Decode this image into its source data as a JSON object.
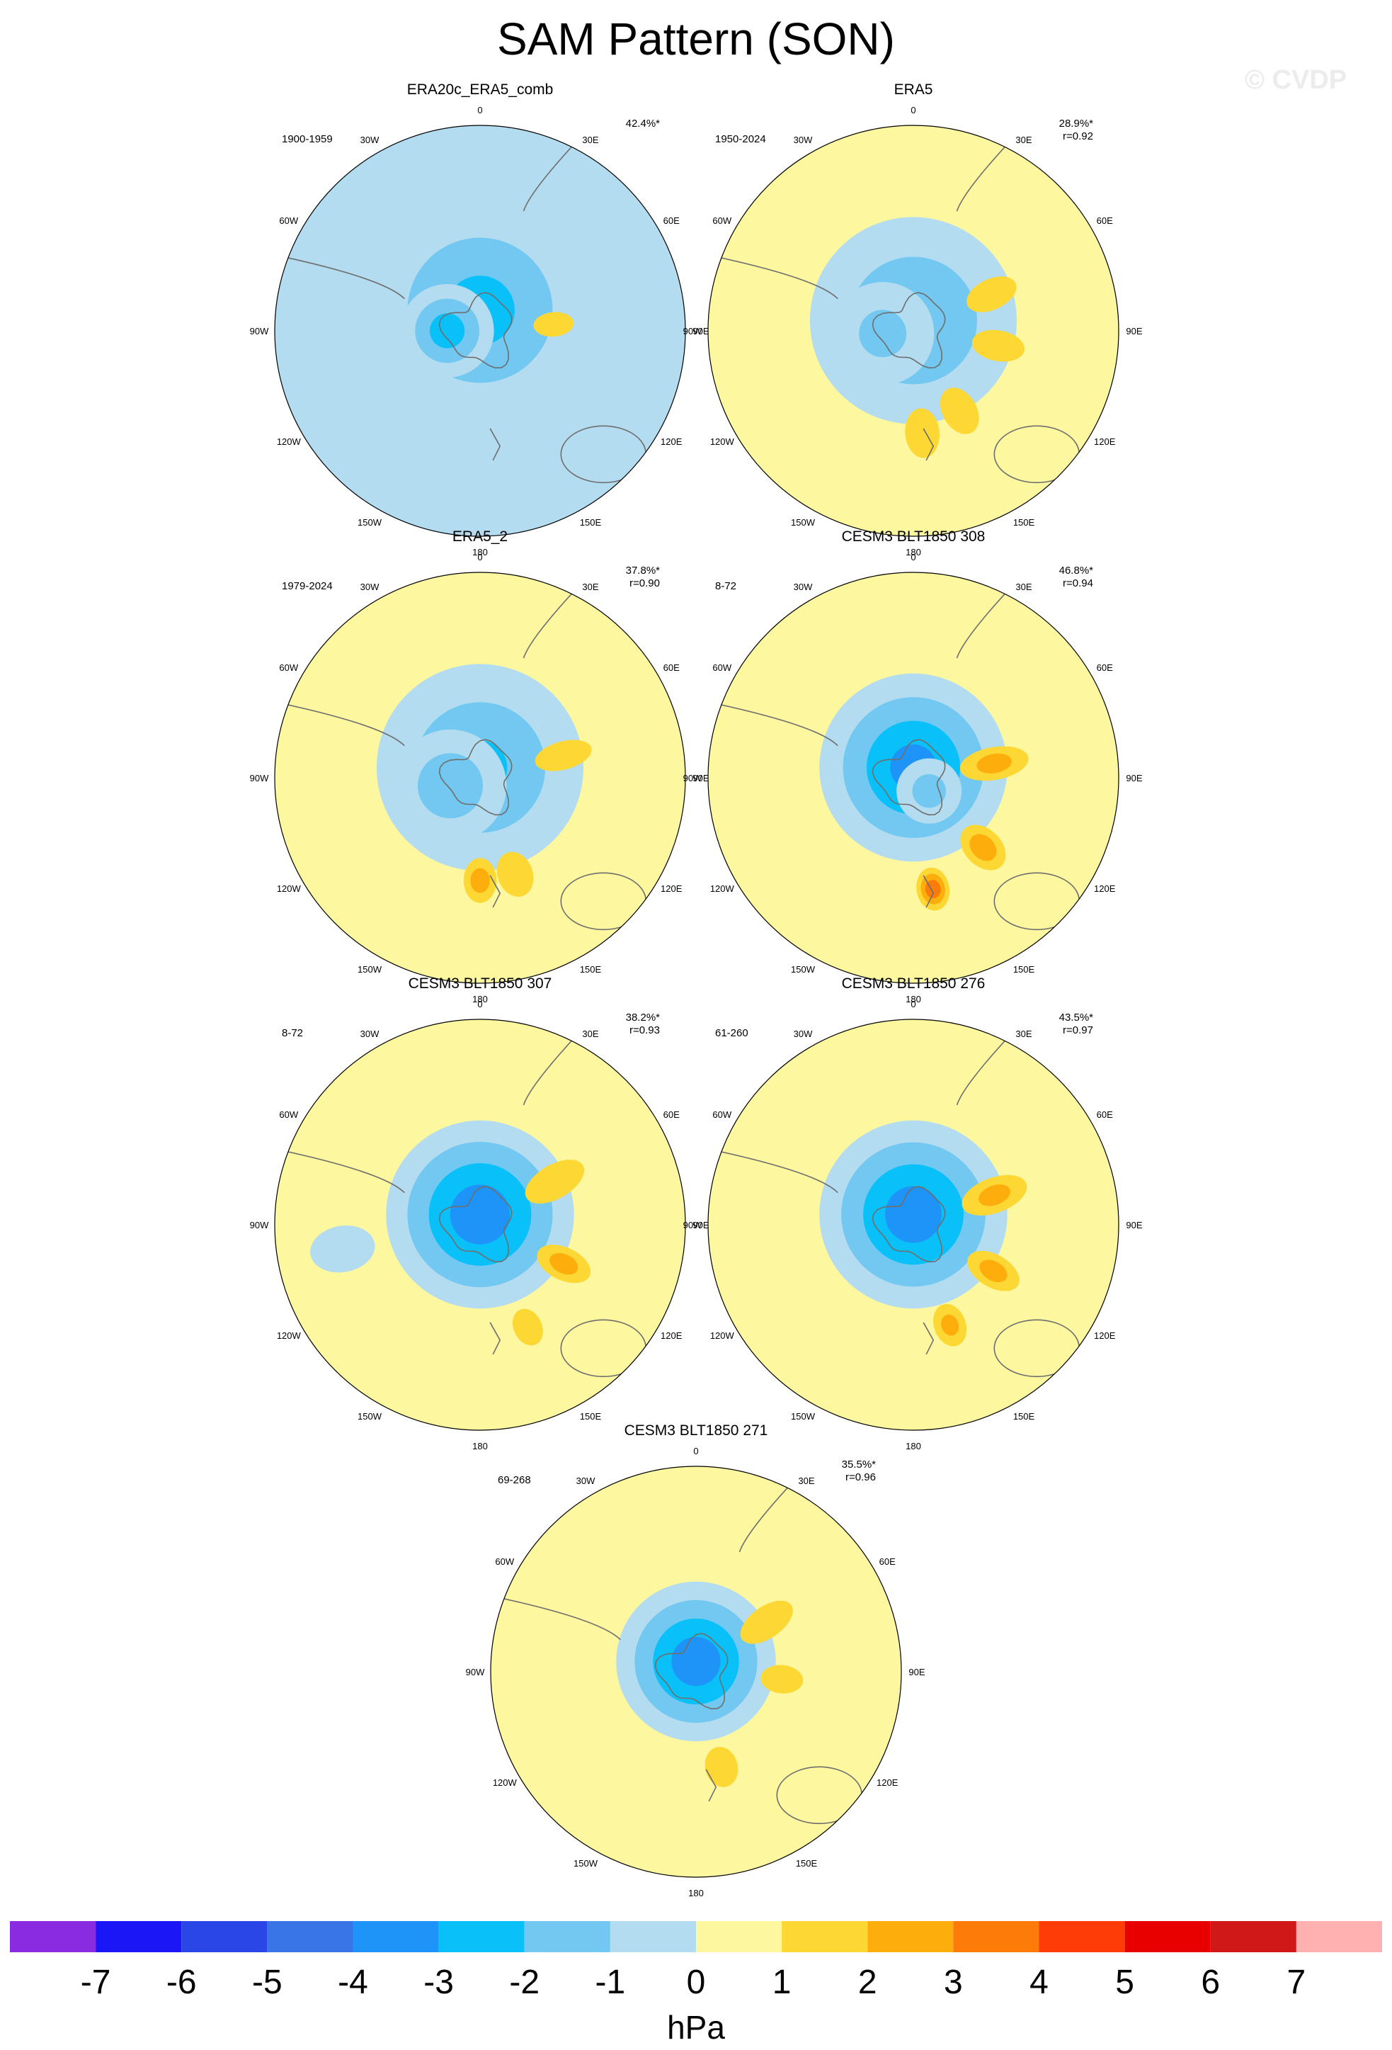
{
  "figure": {
    "title": "SAM Pattern (SON)",
    "watermark": "© CVDP",
    "units": "hPa"
  },
  "chart_data": {
    "type": "polar-contour",
    "projection": "south polar stereographic",
    "variable": "SAM regression pattern (sea-level pressure)",
    "units": "hPa",
    "colorbar": {
      "levels": [
        -7,
        -6,
        -5,
        -4,
        -3,
        -2,
        -1,
        0,
        1,
        2,
        3,
        4,
        5,
        6,
        7
      ],
      "colors": [
        "#8a2be2",
        "#1a16f5",
        "#2b46e6",
        "#3a75e8",
        "#1f94f8",
        "#0ac0f8",
        "#72c8f0",
        "#b4dcf0",
        "#fdf7a0",
        "#fdd734",
        "#fdae0c",
        "#fd7b08",
        "#fd3c08",
        "#e80000",
        "#d01818",
        "#ffb0b0"
      ]
    },
    "longitude_labels": [
      "0",
      "30E",
      "60E",
      "90E",
      "120E",
      "150E",
      "180",
      "150W",
      "120W",
      "90W",
      "60W",
      "30W"
    ],
    "panels": [
      {
        "name": "ERA20c_ERA5_comb",
        "period": "1900-1959",
        "pct_var": "42.4%*",
        "r": "",
        "blobs": [
          {
            "v": -0.6,
            "lon": 0,
            "colat": 0,
            "sx": 0.95,
            "sy": 0.95
          },
          {
            "v": -2.2,
            "lon": 0,
            "colat": 0.1,
            "sx": 0.45,
            "sy": 0.45
          },
          {
            "v": -2.3,
            "lon": 270,
            "colat": 0.16,
            "sx": 0.18,
            "sy": 0.18
          },
          {
            "v": 1.0,
            "lon": 85,
            "colat": 0.36,
            "sx": 0.09,
            "sy": 0.18
          }
        ]
      },
      {
        "name": "ERA5",
        "period": "1950-2024",
        "pct_var": "28.9%*",
        "r": "r=0.92",
        "blobs": [
          {
            "v": -1.9,
            "lon": 0,
            "colat": 0.05,
            "sx": 0.42,
            "sy": 0.42
          },
          {
            "v": -1.1,
            "lon": 265,
            "colat": 0.15,
            "sx": 0.2,
            "sy": 0.2
          },
          {
            "v": 1.5,
            "lon": 65,
            "colat": 0.42,
            "sx": 0.09,
            "sy": 0.18
          },
          {
            "v": 1.5,
            "lon": 100,
            "colat": 0.42,
            "sx": 0.09,
            "sy": 0.18
          },
          {
            "v": 1.6,
            "lon": 150,
            "colat": 0.45,
            "sx": 0.1,
            "sy": 0.16
          },
          {
            "v": 1.6,
            "lon": 175,
            "colat": 0.5,
            "sx": 0.1,
            "sy": 0.16
          }
        ]
      },
      {
        "name": "ERA5_2",
        "period": "1979-2024",
        "pct_var": "37.8%*",
        "r": "r=0.90",
        "blobs": [
          {
            "v": -2.0,
            "lon": 0,
            "colat": 0.05,
            "sx": 0.42,
            "sy": 0.42
          },
          {
            "v": -1.6,
            "lon": 255,
            "colat": 0.15,
            "sx": 0.22,
            "sy": 0.22
          },
          {
            "v": 1.5,
            "lon": 75,
            "colat": 0.42,
            "sx": 0.08,
            "sy": 0.2
          },
          {
            "v": 1.7,
            "lon": 160,
            "colat": 0.5,
            "sx": 0.1,
            "sy": 0.14
          },
          {
            "v": 2.2,
            "lon": 180,
            "colat": 0.5,
            "sx": 0.08,
            "sy": 0.12
          },
          {
            "v": 0.8,
            "lon": 330,
            "colat": 0.55,
            "sx": 0.06,
            "sy": 0.06
          }
        ]
      },
      {
        "name": "CESM3 BLT1850 308",
        "period": "8-72",
        "pct_var": "46.8%*",
        "r": "r=0.94",
        "blobs": [
          {
            "v": -3.2,
            "lon": 0,
            "colat": 0.05,
            "sx": 0.38,
            "sy": 0.38
          },
          {
            "v": -1.2,
            "lon": 130,
            "colat": 0.1,
            "sx": 0.12,
            "sy": 0.12
          },
          {
            "v": 2.2,
            "lon": 80,
            "colat": 0.4,
            "sx": 0.08,
            "sy": 0.2
          },
          {
            "v": 2.4,
            "lon": 135,
            "colat": 0.48,
            "sx": 0.09,
            "sy": 0.14
          },
          {
            "v": 3.2,
            "lon": 170,
            "colat": 0.55,
            "sx": 0.07,
            "sy": 0.1
          }
        ]
      },
      {
        "name": "CESM3 BLT1850 307",
        "period": "8-72",
        "pct_var": "38.2%*",
        "r": "r=0.93",
        "blobs": [
          {
            "v": -3.6,
            "lon": 0,
            "colat": 0.05,
            "sx": 0.38,
            "sy": 0.38
          },
          {
            "v": 1.9,
            "lon": 60,
            "colat": 0.42,
            "sx": 0.09,
            "sy": 0.2
          },
          {
            "v": 2.2,
            "lon": 115,
            "colat": 0.45,
            "sx": 0.08,
            "sy": 0.16
          },
          {
            "v": 1.5,
            "lon": 155,
            "colat": 0.55,
            "sx": 0.08,
            "sy": 0.12
          },
          {
            "v": -0.5,
            "lon": 260,
            "colat": 0.68,
            "sx": 0.08,
            "sy": 0.12
          }
        ]
      },
      {
        "name": "CESM3 BLT1850 276",
        "period": "61-260",
        "pct_var": "43.5%*",
        "r": "r=0.97",
        "blobs": [
          {
            "v": -3.5,
            "lon": 0,
            "colat": 0.05,
            "sx": 0.38,
            "sy": 0.38
          },
          {
            "v": 2.1,
            "lon": 70,
            "colat": 0.42,
            "sx": 0.09,
            "sy": 0.2
          },
          {
            "v": 2.2,
            "lon": 120,
            "colat": 0.45,
            "sx": 0.08,
            "sy": 0.16
          },
          {
            "v": 2.0,
            "lon": 160,
            "colat": 0.52,
            "sx": 0.08,
            "sy": 0.12
          }
        ]
      },
      {
        "name": "CESM3 BLT1850 271",
        "period": "69-268",
        "pct_var": "35.5%*",
        "r": "r=0.96",
        "blobs": [
          {
            "v": -3.5,
            "lon": 0,
            "colat": 0.05,
            "sx": 0.32,
            "sy": 0.32
          },
          {
            "v": 1.6,
            "lon": 55,
            "colat": 0.42,
            "sx": 0.09,
            "sy": 0.2
          },
          {
            "v": 1.9,
            "lon": 95,
            "colat": 0.42,
            "sx": 0.07,
            "sy": 0.12
          },
          {
            "v": 1.7,
            "lon": 165,
            "colat": 0.48,
            "sx": 0.09,
            "sy": 0.12
          }
        ]
      }
    ]
  }
}
